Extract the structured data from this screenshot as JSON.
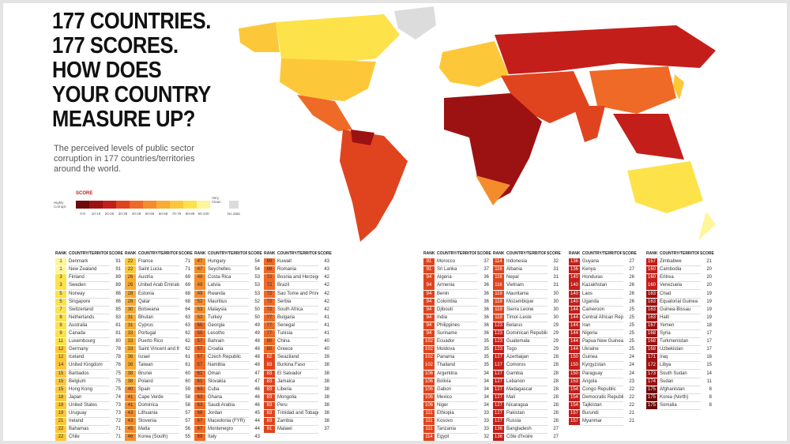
{
  "header": {
    "title_lines": [
      "177 COUNTRIES.",
      "177 SCORES.",
      "HOW DOES",
      "YOUR COUNTRY",
      "MEASURE UP?"
    ],
    "subtitle": "The perceived levels of public sector corruption in 177 countries/territories around the world."
  },
  "legend": {
    "title": "SCORE",
    "low": "Highly Corrupt",
    "high": "Very Clean",
    "no_data": "No data",
    "bands": [
      {
        "label": "0-9",
        "color": "#6e0a0a"
      },
      {
        "label": "10-19",
        "color": "#9c1212"
      },
      {
        "label": "20-29",
        "color": "#c41e1a"
      },
      {
        "label": "30-39",
        "color": "#e0441e"
      },
      {
        "label": "40-49",
        "color": "#ef6a26"
      },
      {
        "label": "50-59",
        "color": "#f58c2c"
      },
      {
        "label": "60-69",
        "color": "#f9ac32"
      },
      {
        "label": "70-79",
        "color": "#fcc83a"
      },
      {
        "label": "80-89",
        "color": "#fde24a"
      },
      {
        "label": "90-100",
        "color": "#fff59a"
      }
    ]
  },
  "table": {
    "headers": [
      "RANK",
      "COUNTRY/TERRITORY",
      "SCORE"
    ],
    "columns": [
      [
        [
          1,
          "Denmark",
          91
        ],
        [
          1,
          "New Zealand",
          91
        ],
        [
          3,
          "Finland",
          89
        ],
        [
          3,
          "Sweden",
          89
        ],
        [
          5,
          "Norway",
          86
        ],
        [
          5,
          "Singapore",
          86
        ],
        [
          7,
          "Switzerland",
          85
        ],
        [
          8,
          "Netherlands",
          83
        ],
        [
          9,
          "Australia",
          81
        ],
        [
          9,
          "Canada",
          81
        ],
        [
          11,
          "Luxembourg",
          80
        ],
        [
          12,
          "Germany",
          78
        ],
        [
          12,
          "Iceland",
          78
        ],
        [
          14,
          "United Kingdom",
          76
        ],
        [
          15,
          "Barbados",
          75
        ],
        [
          15,
          "Belgium",
          75
        ],
        [
          15,
          "Hong Kong",
          75
        ],
        [
          18,
          "Japan",
          74
        ],
        [
          19,
          "United States",
          73
        ],
        [
          19,
          "Uruguay",
          73
        ],
        [
          21,
          "Ireland",
          72
        ],
        [
          22,
          "Bahamas",
          71
        ],
        [
          22,
          "Chile",
          71
        ]
      ],
      [
        [
          22,
          "France",
          71
        ],
        [
          22,
          "Saint Lucia",
          71
        ],
        [
          26,
          "Austria",
          69
        ],
        [
          26,
          "United Arab Emirates",
          69
        ],
        [
          28,
          "Estonia",
          68
        ],
        [
          28,
          "Qatar",
          68
        ],
        [
          30,
          "Botswana",
          64
        ],
        [
          31,
          "Bhutan",
          63
        ],
        [
          31,
          "Cyprus",
          63
        ],
        [
          33,
          "Portugal",
          62
        ],
        [
          33,
          "Puerto Rico",
          62
        ],
        [
          33,
          "Saint Vincent and the Grenadines",
          62
        ],
        [
          36,
          "Israel",
          61
        ],
        [
          36,
          "Taiwan",
          61
        ],
        [
          38,
          "Brunei",
          60
        ],
        [
          38,
          "Poland",
          60
        ],
        [
          40,
          "Spain",
          59
        ],
        [
          41,
          "Cape Verde",
          58
        ],
        [
          41,
          "Dominica",
          58
        ],
        [
          43,
          "Lithuania",
          57
        ],
        [
          43,
          "Slovenia",
          57
        ],
        [
          45,
          "Malta",
          56
        ],
        [
          46,
          "Korea (South)",
          55
        ]
      ],
      [
        [
          47,
          "Hungary",
          54
        ],
        [
          47,
          "Seychelles",
          54
        ],
        [
          49,
          "Costa Rica",
          53
        ],
        [
          49,
          "Latvia",
          53
        ],
        [
          49,
          "Rwanda",
          53
        ],
        [
          52,
          "Mauritius",
          52
        ],
        [
          53,
          "Malaysia",
          50
        ],
        [
          53,
          "Turkey",
          50
        ],
        [
          55,
          "Georgia",
          49
        ],
        [
          55,
          "Lesotho",
          49
        ],
        [
          57,
          "Bahrain",
          48
        ],
        [
          57,
          "Croatia",
          48
        ],
        [
          57,
          "Czech Republic",
          48
        ],
        [
          57,
          "Namibia",
          48
        ],
        [
          61,
          "Oman",
          47
        ],
        [
          61,
          "Slovakia",
          47
        ],
        [
          63,
          "Cuba",
          46
        ],
        [
          63,
          "Ghana",
          46
        ],
        [
          63,
          "Saudi Arabia",
          46
        ],
        [
          66,
          "Jordan",
          45
        ],
        [
          67,
          "Macedonia (FYR)",
          44
        ],
        [
          67,
          "Montenegro",
          44
        ],
        [
          69,
          "Italy",
          43
        ]
      ],
      [
        [
          69,
          "Kuwait",
          43
        ],
        [
          69,
          "Romania",
          43
        ],
        [
          72,
          "Bosnia and Herzegovina",
          42
        ],
        [
          72,
          "Brazil",
          42
        ],
        [
          72,
          "Sao Tome and Principe",
          42
        ],
        [
          72,
          "Serbia",
          42
        ],
        [
          72,
          "South Africa",
          42
        ],
        [
          77,
          "Bulgaria",
          41
        ],
        [
          77,
          "Senegal",
          41
        ],
        [
          77,
          "Tunisia",
          41
        ],
        [
          80,
          "China",
          40
        ],
        [
          80,
          "Greece",
          40
        ],
        [
          82,
          "Swaziland",
          39
        ],
        [
          83,
          "Burkina Faso",
          38
        ],
        [
          83,
          "El Salvador",
          38
        ],
        [
          83,
          "Jamaica",
          38
        ],
        [
          83,
          "Liberia",
          38
        ],
        [
          83,
          "Mongolia",
          38
        ],
        [
          83,
          "Peru",
          38
        ],
        [
          83,
          "Trinidad and Tobago",
          38
        ],
        [
          83,
          "Zambia",
          38
        ],
        [
          91,
          "Malawi",
          37
        ]
      ],
      [
        [
          91,
          "Morocco",
          37
        ],
        [
          91,
          "Sri Lanka",
          37
        ],
        [
          94,
          "Algeria",
          36
        ],
        [
          94,
          "Armenia",
          36
        ],
        [
          94,
          "Benin",
          36
        ],
        [
          94,
          "Colombia",
          36
        ],
        [
          94,
          "Djibouti",
          36
        ],
        [
          94,
          "India",
          36
        ],
        [
          94,
          "Philippines",
          36
        ],
        [
          94,
          "Suriname",
          36
        ],
        [
          102,
          "Ecuador",
          35
        ],
        [
          102,
          "Moldova",
          35
        ],
        [
          102,
          "Panama",
          35
        ],
        [
          102,
          "Thailand",
          35
        ],
        [
          106,
          "Argentina",
          34
        ],
        [
          106,
          "Bolivia",
          34
        ],
        [
          106,
          "Gabon",
          34
        ],
        [
          106,
          "Mexico",
          34
        ],
        [
          106,
          "Niger",
          34
        ],
        [
          111,
          "Ethiopia",
          33
        ],
        [
          111,
          "Kosovo",
          33
        ],
        [
          111,
          "Tanzania",
          33
        ],
        [
          114,
          "Egypt",
          32
        ]
      ],
      [
        [
          114,
          "Indonesia",
          32
        ],
        [
          116,
          "Albania",
          31
        ],
        [
          116,
          "Nepal",
          31
        ],
        [
          116,
          "Vietnam",
          31
        ],
        [
          119,
          "Mauritania",
          30
        ],
        [
          119,
          "Mozambique",
          30
        ],
        [
          119,
          "Sierra Leone",
          30
        ],
        [
          119,
          "Timor-Leste",
          30
        ],
        [
          123,
          "Belarus",
          29
        ],
        [
          123,
          "Dominican Republic",
          29
        ],
        [
          123,
          "Guatemala",
          29
        ],
        [
          123,
          "Togo",
          29
        ],
        [
          127,
          "Azerbaijan",
          28
        ],
        [
          127,
          "Comoros",
          28
        ],
        [
          127,
          "Gambia",
          28
        ],
        [
          127,
          "Lebanon",
          28
        ],
        [
          127,
          "Madagascar",
          28
        ],
        [
          127,
          "Mali",
          28
        ],
        [
          127,
          "Nicaragua",
          28
        ],
        [
          127,
          "Pakistan",
          28
        ],
        [
          127,
          "Russia",
          28
        ],
        [
          136,
          "Bangladesh",
          27
        ],
        [
          136,
          "Côte d'Ivoire",
          27
        ]
      ],
      [
        [
          136,
          "Guyana",
          27
        ],
        [
          136,
          "Kenya",
          27
        ],
        [
          140,
          "Honduras",
          26
        ],
        [
          140,
          "Kazakhstan",
          26
        ],
        [
          140,
          "Laos",
          26
        ],
        [
          140,
          "Uganda",
          26
        ],
        [
          144,
          "Cameroon",
          25
        ],
        [
          144,
          "Central African Republic",
          25
        ],
        [
          144,
          "Iran",
          25
        ],
        [
          144,
          "Nigeria",
          25
        ],
        [
          144,
          "Papua New Guinea",
          25
        ],
        [
          144,
          "Ukraine",
          25
        ],
        [
          150,
          "Guinea",
          24
        ],
        [
          150,
          "Kyrgyzstan",
          24
        ],
        [
          150,
          "Paraguay",
          24
        ],
        [
          153,
          "Angola",
          23
        ],
        [
          154,
          "Congo Republic",
          22
        ],
        [
          154,
          "Democratic Republic of the Congo",
          22
        ],
        [
          154,
          "Tajikistan",
          22
        ],
        [
          157,
          "Burundi",
          21
        ],
        [
          157,
          "Myanmar",
          21
        ]
      ],
      [
        [
          157,
          "Zimbabwe",
          21
        ],
        [
          160,
          "Cambodia",
          20
        ],
        [
          160,
          "Eritrea",
          20
        ],
        [
          160,
          "Venezuela",
          20
        ],
        [
          163,
          "Chad",
          19
        ],
        [
          163,
          "Equatorial Guinea",
          19
        ],
        [
          163,
          "Guinea-Bissau",
          19
        ],
        [
          163,
          "Haiti",
          19
        ],
        [
          167,
          "Yemen",
          18
        ],
        [
          168,
          "Syria",
          17
        ],
        [
          168,
          "Turkmenistan",
          17
        ],
        [
          168,
          "Uzbekistan",
          17
        ],
        [
          171,
          "Iraq",
          16
        ],
        [
          172,
          "Libya",
          15
        ],
        [
          173,
          "South Sudan",
          14
        ],
        [
          174,
          "Sudan",
          11
        ],
        [
          175,
          "Afghanistan",
          8
        ],
        [
          175,
          "Korea (North)",
          8
        ],
        [
          175,
          "Somalia",
          8
        ]
      ]
    ]
  }
}
